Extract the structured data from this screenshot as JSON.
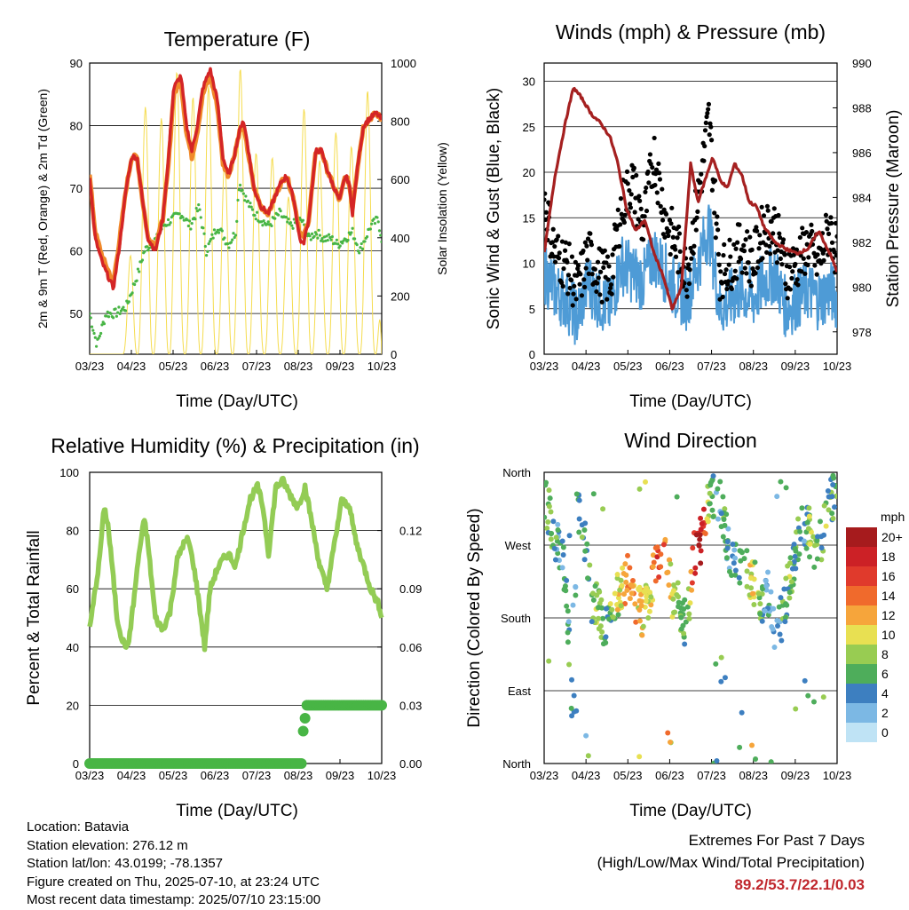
{
  "charts": {
    "temperature": {
      "title": "Temperature (F)",
      "xlabel": "Time (Day/UTC)",
      "ylabel_left": "2m & 9m T (Red, Orange) & 2m Td (Green)",
      "ylabel_right": "Solar Insolation (Yellow)",
      "colors": {
        "t2": "#d42526",
        "t9": "#f0892a",
        "td": "#48b545",
        "solar": "#f5dc4e"
      }
    },
    "winds": {
      "title": "Winds (mph) & Pressure (mb)",
      "xlabel": "Time (Day/UTC)",
      "ylabel_left": "Sonic Wind & Gust (Blue, Black)",
      "ylabel_right": "Station Pressure (Maroon)",
      "colors": {
        "wind": "#4e9bd6",
        "gust": "#000000",
        "pressure": "#a52020"
      }
    },
    "rh": {
      "title": "Relative Humidity (%) & Precipitation (in)",
      "xlabel": "Time (Day/UTC)",
      "ylabel_left": "Percent & Total Rainfall",
      "colors": {
        "rh": "#93cc55",
        "precip": "#48b545"
      }
    },
    "direction": {
      "title": "Wind Direction",
      "xlabel": "Time (Day/UTC)",
      "ylabel_left": "Direction (Colored By Speed)",
      "legend_title": "mph"
    }
  },
  "chart_data": [
    {
      "type": "line",
      "title": "Temperature (F)",
      "xlabel": "Time (Day/UTC)",
      "x_ticks": [
        "03/23",
        "04/23",
        "05/23",
        "06/23",
        "07/23",
        "08/23",
        "09/23",
        "10/23"
      ],
      "ylim": [
        43.5,
        90
      ],
      "y_ticks": [
        50,
        60,
        70,
        80,
        90
      ],
      "y2lim": [
        0,
        1000
      ],
      "y2_ticks": [
        0,
        200,
        400,
        600,
        800,
        1000
      ],
      "series": [
        {
          "name": "2m T",
          "axis": "left",
          "x": [
            0.0,
            0.15,
            0.35,
            0.65,
            0.8,
            1.0,
            1.15,
            1.3,
            1.45,
            1.6,
            1.8,
            2.0,
            2.15,
            2.3,
            2.5,
            2.65,
            2.8,
            2.95,
            3.1,
            3.3,
            3.5,
            3.65,
            3.8,
            3.95,
            4.1,
            4.2,
            4.3,
            4.5,
            4.7,
            4.9,
            5.1,
            5.25,
            5.4,
            5.6,
            5.75,
            5.85,
            6.0,
            6.2,
            6.35,
            6.5,
            6.7,
            6.85,
            7.0,
            7.1,
            7.2,
            7.35,
            7.5,
            7.65,
            7.85,
            8.0
          ],
          "y": [
            72,
            62,
            58,
            54,
            60,
            70,
            75,
            75,
            68,
            62,
            60,
            65,
            74,
            86,
            88,
            80,
            76,
            80,
            86,
            89,
            84,
            75,
            72,
            75,
            79,
            81,
            78,
            70,
            67,
            66,
            69,
            71,
            72,
            68,
            62,
            61,
            65,
            76,
            76,
            73,
            70,
            68,
            72,
            71,
            66,
            74,
            80,
            81,
            82,
            81
          ]
        },
        {
          "name": "9m T",
          "axis": "left",
          "x": [
            0.0,
            0.15,
            0.35,
            0.65,
            0.8,
            1.0,
            1.15,
            1.3,
            1.45,
            1.6,
            1.8,
            2.0,
            2.15,
            2.3,
            2.5,
            2.65,
            2.8,
            2.95,
            3.1,
            3.3,
            3.5,
            3.65,
            3.8,
            3.95,
            4.1,
            4.2,
            4.3,
            4.5,
            4.7,
            4.9,
            5.1,
            5.25,
            5.4,
            5.6,
            5.75,
            5.85,
            6.0,
            6.2,
            6.35,
            6.5,
            6.7,
            6.85,
            7.0,
            7.1,
            7.2,
            7.35,
            7.5,
            7.65,
            7.85,
            8.0
          ],
          "y": [
            72,
            63,
            59,
            55,
            61,
            70,
            75,
            75,
            68,
            62,
            61,
            65,
            73,
            85,
            87,
            79,
            75,
            79,
            85,
            88,
            83,
            74,
            72,
            75,
            79,
            80,
            77,
            70,
            67,
            66,
            69,
            71,
            72,
            68,
            63,
            62,
            65,
            76,
            76,
            73,
            70,
            68,
            72,
            71,
            67,
            74,
            80,
            81,
            82,
            81
          ]
        },
        {
          "name": "2m Td",
          "axis": "left",
          "x": [
            0.0,
            0.2,
            0.45,
            0.7,
            1.0,
            1.3,
            1.5,
            1.65,
            1.85,
            2.0,
            2.25,
            2.5,
            2.75,
            3.0,
            3.2,
            3.5,
            3.8,
            4.0,
            4.1,
            4.3,
            4.5,
            4.7,
            4.9,
            5.2,
            5.5,
            5.8,
            6.0,
            6.2,
            6.4,
            6.6,
            6.8,
            7.0,
            7.2,
            7.4,
            7.7,
            7.9,
            8.0
          ],
          "y": [
            50,
            45,
            50,
            50,
            51,
            56,
            60,
            61,
            62,
            64,
            65,
            66,
            64,
            67,
            60,
            64,
            61,
            63,
            71,
            68,
            66,
            65,
            64,
            66,
            64,
            65,
            62,
            63,
            62,
            62,
            61,
            62,
            63,
            60,
            64,
            65,
            62
          ]
        },
        {
          "name": "Solar Insolation",
          "axis": "right",
          "x": [
            0.0,
            0.3,
            0.5,
            0.9,
            1.0,
            1.3,
            1.6,
            1.85,
            2.1,
            2.3,
            2.45,
            2.6,
            2.85,
            3.1,
            3.3,
            3.5,
            3.8,
            4.1,
            4.4,
            4.7,
            5.1,
            5.4,
            5.7,
            5.9,
            6.2,
            6.5,
            6.8,
            7.1,
            7.4,
            7.6,
            7.8,
            8.0
          ],
          "y": [
            0,
            0,
            0,
            0,
            150,
            700,
            900,
            700,
            950,
            1000,
            950,
            700,
            900,
            1000,
            900,
            600,
            700,
            1000,
            800,
            600,
            700,
            500,
            800,
            850,
            700,
            600,
            800,
            750,
            600,
            900,
            1000,
            0
          ]
        }
      ]
    },
    {
      "type": "line",
      "title": "Winds (mph) & Pressure (mb)",
      "xlabel": "Time (Day/UTC)",
      "x_ticks": [
        "03/23",
        "04/23",
        "05/23",
        "06/23",
        "07/23",
        "08/23",
        "09/23",
        "10/23"
      ],
      "ylim": [
        0,
        32
      ],
      "y_ticks": [
        0,
        5,
        10,
        15,
        20,
        25,
        30
      ],
      "y2lim": [
        977.0,
        990.0
      ],
      "y2_ticks": [
        978,
        980,
        982,
        984,
        986,
        988,
        990
      ],
      "series": [
        {
          "name": "Sonic Wind",
          "axis": "left",
          "x": [
            0.0,
            0.3,
            0.6,
            0.9,
            1.2,
            1.5,
            1.8,
            2.1,
            2.4,
            2.7,
            3.0,
            3.3,
            3.6,
            3.9,
            4.2,
            4.5,
            4.8,
            5.1,
            5.4,
            5.7,
            6.0,
            6.3,
            6.6,
            6.9,
            7.2,
            7.5,
            7.8,
            8.0
          ],
          "y": [
            9,
            7,
            6,
            4,
            8,
            6,
            5,
            10,
            9,
            8,
            11,
            9,
            7,
            6,
            10,
            14,
            5,
            6,
            7,
            6,
            8,
            9,
            5,
            6,
            7,
            6,
            7,
            6
          ]
        },
        {
          "name": "Gust",
          "axis": "left",
          "x": [
            0.0,
            0.3,
            0.6,
            0.9,
            1.2,
            1.5,
            1.8,
            2.1,
            2.4,
            2.7,
            3.0,
            3.3,
            3.6,
            3.9,
            4.2,
            4.5,
            4.8,
            5.1,
            5.4,
            5.7,
            6.0,
            6.3,
            6.6,
            6.9,
            7.2,
            7.5,
            7.8,
            8.0
          ],
          "y": [
            17,
            11,
            10,
            7,
            11,
            9,
            8,
            16,
            19,
            14,
            22,
            15,
            12,
            9,
            17,
            26,
            9,
            10,
            12,
            10,
            14,
            14,
            9,
            10,
            12,
            10,
            14,
            11
          ]
        },
        {
          "name": "Station Pressure",
          "axis": "right",
          "x": [
            0.0,
            0.3,
            0.6,
            0.8,
            1.0,
            1.3,
            1.55,
            1.8,
            2.0,
            2.25,
            2.5,
            2.75,
            3.0,
            3.25,
            3.5,
            3.75,
            4.0,
            4.2,
            4.4,
            4.6,
            4.8,
            5.0,
            5.2,
            5.4,
            5.6,
            5.8,
            6.0,
            6.3,
            6.6,
            6.9,
            7.2,
            7.5,
            7.8,
            8.0
          ],
          "y": [
            981.5,
            985.0,
            987.5,
            988.9,
            988.5,
            987.7,
            987.3,
            986.7,
            985.6,
            983.5,
            982.5,
            983.0,
            981.5,
            980.5,
            979.0,
            980.0,
            985.5,
            983.8,
            984.8,
            985.8,
            984.8,
            984.4,
            985.5,
            985.0,
            983.8,
            983.6,
            982.7,
            982.0,
            981.7,
            981.5,
            981.7,
            982.5,
            981.5,
            980.7
          ]
        }
      ]
    },
    {
      "type": "line",
      "title": "Relative Humidity (%) & Precipitation (in)",
      "xlabel": "Time (Day/UTC)",
      "x_ticks": [
        "03/23",
        "04/23",
        "05/23",
        "06/23",
        "07/23",
        "08/23",
        "09/23",
        "10/23"
      ],
      "ylim": [
        0,
        100
      ],
      "y_ticks": [
        0,
        20,
        40,
        60,
        80,
        100
      ],
      "y2lim": [
        0,
        0.15
      ],
      "y2_ticks": [
        "0.00",
        "0.03",
        "0.06",
        "0.09",
        "0.12"
      ],
      "series": [
        {
          "name": "Relative Humidity",
          "axis": "left",
          "x": [
            0.0,
            0.1,
            0.25,
            0.4,
            0.5,
            0.6,
            0.75,
            0.9,
            1.05,
            1.2,
            1.35,
            1.5,
            1.6,
            1.8,
            2.0,
            2.2,
            2.4,
            2.55,
            2.7,
            2.85,
            3.0,
            3.15,
            3.3,
            3.5,
            3.65,
            3.8,
            4.0,
            4.2,
            4.4,
            4.6,
            4.75,
            4.9,
            5.1,
            5.3,
            5.5,
            5.7,
            5.9,
            6.1,
            6.3,
            6.5,
            6.7,
            6.9,
            7.1,
            7.3,
            7.5,
            7.7,
            7.9,
            8.0
          ],
          "y": [
            46,
            55,
            68,
            88,
            82,
            70,
            50,
            42,
            40,
            55,
            72,
            84,
            75,
            50,
            46,
            52,
            70,
            75,
            77,
            68,
            55,
            40,
            60,
            67,
            70,
            72,
            68,
            80,
            91,
            95,
            88,
            72,
            95,
            97,
            92,
            88,
            95,
            82,
            68,
            60,
            75,
            90,
            89,
            76,
            68,
            60,
            55,
            51
          ]
        },
        {
          "name": "Total Precipitation",
          "axis": "right",
          "x": [
            0.0,
            2.0,
            4.0,
            5.5,
            5.8,
            5.9,
            6.0,
            6.5,
            7.0,
            7.5,
            8.0
          ],
          "y": [
            0,
            0,
            0,
            0,
            0,
            0.03,
            0.03,
            0.03,
            0.03,
            0.03,
            0.03
          ]
        }
      ]
    },
    {
      "type": "scatter",
      "title": "Wind Direction",
      "xlabel": "Time (Day/UTC)",
      "x_ticks": [
        "03/23",
        "04/23",
        "05/23",
        "06/23",
        "07/23",
        "08/23",
        "09/23",
        "10/23"
      ],
      "ylim": [
        0,
        360
      ],
      "y_tick_labels": [
        "North",
        "East",
        "South",
        "West",
        "North"
      ],
      "colorbar": {
        "title": "mph",
        "labels": [
          "20+",
          "18",
          "16",
          "14",
          "12",
          "10",
          "8",
          "6",
          "4",
          "2",
          "0"
        ]
      },
      "series": [
        {
          "name": "Direction",
          "x": [
            0.05,
            0.2,
            0.3,
            0.5,
            0.6,
            0.8,
            0.9,
            1.0,
            1.1,
            1.3,
            1.5,
            1.7,
            1.9,
            2.1,
            2.3,
            2.5,
            2.7,
            2.9,
            3.1,
            3.3,
            3.5,
            3.7,
            3.9,
            4.1,
            4.3,
            4.5,
            4.7,
            4.9,
            5.1,
            5.3,
            5.5,
            5.7,
            5.9,
            6.1,
            6.3,
            6.5,
            6.7,
            6.9,
            7.1,
            7.3,
            7.5,
            7.7,
            7.9
          ],
          "y": [
            320,
            300,
            280,
            250,
            230,
            30,
            330,
            300,
            280,
            200,
            190,
            170,
            190,
            220,
            230,
            200,
            185,
            210,
            260,
            250,
            210,
            190,
            170,
            260,
            280,
            320,
            340,
            300,
            260,
            250,
            240,
            230,
            200,
            220,
            160,
            180,
            230,
            270,
            300,
            280,
            260,
            310,
            330
          ],
          "speed": [
            6,
            7,
            5,
            4,
            6,
            3,
            5,
            6,
            4,
            6,
            8,
            5,
            8,
            10,
            14,
            12,
            9,
            10,
            16,
            14,
            9,
            7,
            5,
            18,
            20,
            8,
            4,
            6,
            4,
            5,
            9,
            10,
            6,
            4,
            3,
            5,
            7,
            6,
            4,
            8,
            6,
            7,
            5
          ]
        }
      ]
    }
  ],
  "info": {
    "location": "Location: Batavia",
    "elevation": "Station elevation: 276.12 m",
    "latlon": "Station lat/lon: 43.0199; -78.1357",
    "created": "Figure created on Thu, 2025-07-10, at 23:24 UTC",
    "recent": "Most recent data timestamp: 2025/07/10 23:15:00"
  },
  "extremes": {
    "title": "Extremes For Past 7 Days",
    "subtitle": "(High/Low/Max Wind/Total Precipitation)",
    "values": "89.2/53.7/22.1/0.03"
  }
}
